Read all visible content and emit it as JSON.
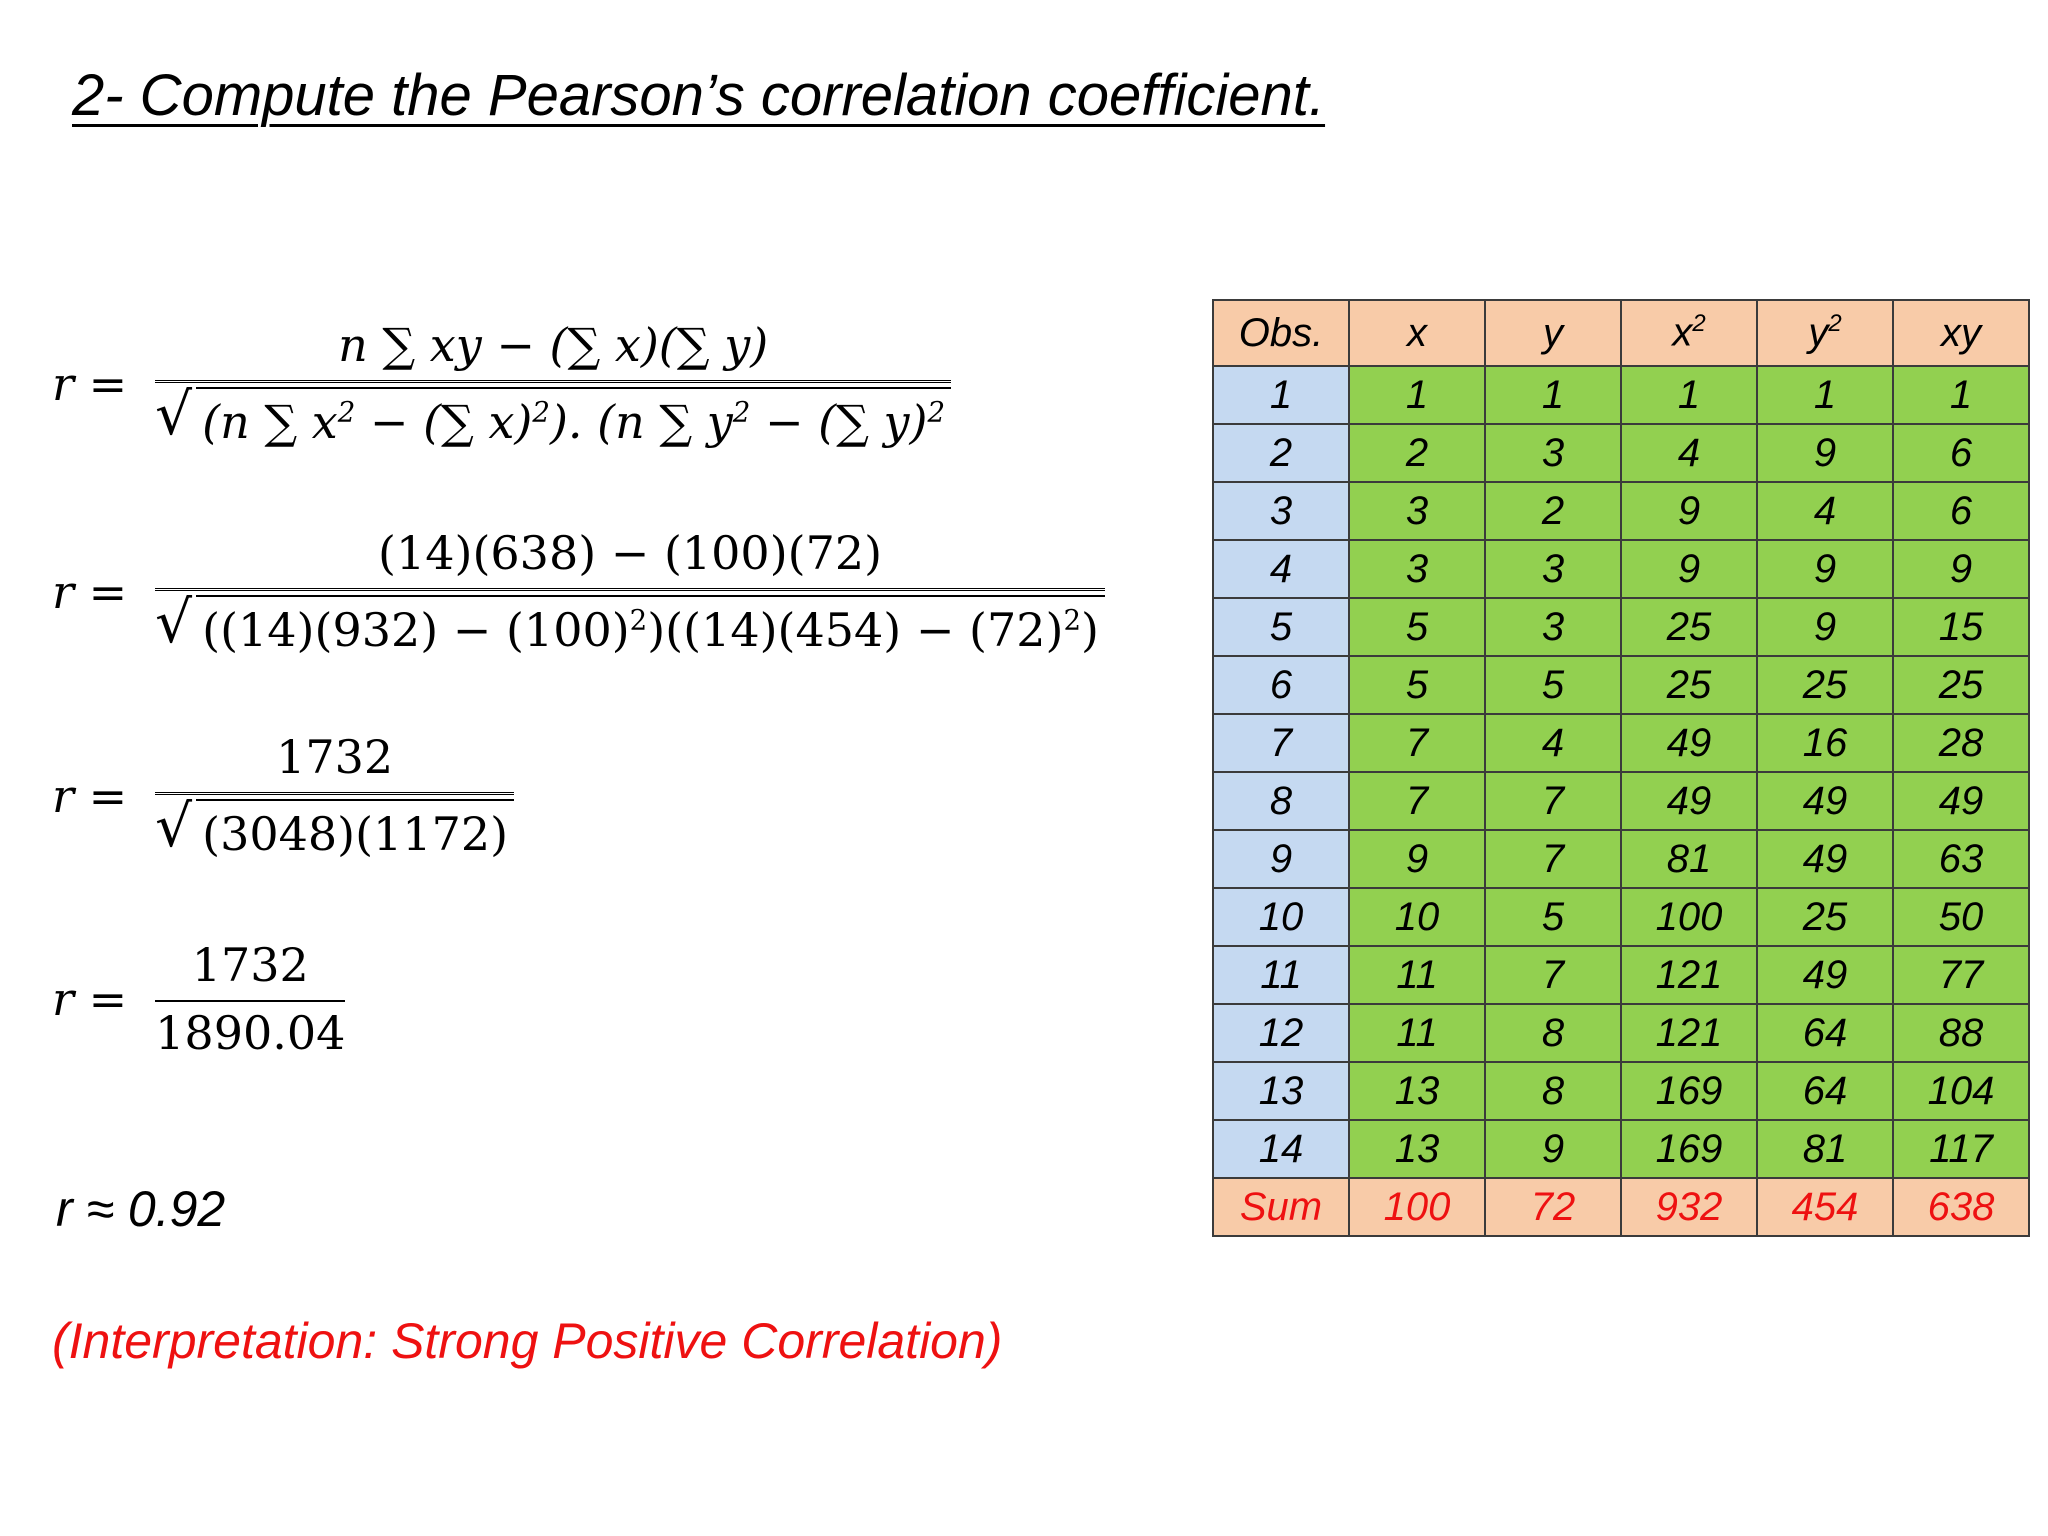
{
  "title": "2- Compute the Pearson’s correlation coefficient.",
  "formula": {
    "lhs": "r =",
    "general_num": "n ∑ xy  − (∑ x)(∑ y)",
    "general_den_a": "(n ∑ x",
    "general_den_b": " − (∑ x)",
    "general_den_c": "). (n ∑ y",
    "general_den_d": " − (∑ y)",
    "sq": "2",
    "sub_num": "(14)(638) − (100)(72)",
    "sub_den_a": "((14)(932) − (100)",
    "sub_den_b": ")((14)(454) − (72)",
    "sub_den_c": ")",
    "simp_num": "1732",
    "simp_den": "(3048)(1172)",
    "final_num": "1732",
    "final_den": "1890.04"
  },
  "result": "r ≈ 0.92",
  "interpretation": "(Interpretation: Strong Positive Correlation)",
  "table": {
    "headers": {
      "obs": "Obs.",
      "x": "x",
      "y": "y",
      "x2_base": "x",
      "y2_base": "y",
      "sq": "2",
      "xy": "xy"
    },
    "rows": [
      [
        "1",
        "1",
        "1",
        "1",
        "1",
        "1"
      ],
      [
        "2",
        "2",
        "3",
        "4",
        "9",
        "6"
      ],
      [
        "3",
        "3",
        "2",
        "9",
        "4",
        "6"
      ],
      [
        "4",
        "3",
        "3",
        "9",
        "9",
        "9"
      ],
      [
        "5",
        "5",
        "3",
        "25",
        "9",
        "15"
      ],
      [
        "6",
        "5",
        "5",
        "25",
        "25",
        "25"
      ],
      [
        "7",
        "7",
        "4",
        "49",
        "16",
        "28"
      ],
      [
        "8",
        "7",
        "7",
        "49",
        "49",
        "49"
      ],
      [
        "9",
        "9",
        "7",
        "81",
        "49",
        "63"
      ],
      [
        "10",
        "10",
        "5",
        "100",
        "25",
        "50"
      ],
      [
        "11",
        "11",
        "7",
        "121",
        "49",
        "77"
      ],
      [
        "12",
        "11",
        "8",
        "121",
        "64",
        "88"
      ],
      [
        "13",
        "13",
        "8",
        "169",
        "64",
        "104"
      ],
      [
        "14",
        "13",
        "9",
        "169",
        "81",
        "117"
      ]
    ],
    "sum": [
      "Sum",
      "100",
      "72",
      "932",
      "454",
      "638"
    ]
  },
  "colors": {
    "obs_cell": "#c5d9f1",
    "value_cell": "#92d050",
    "header_cell": "#f8cba8",
    "accent_red": "#ee1111"
  }
}
